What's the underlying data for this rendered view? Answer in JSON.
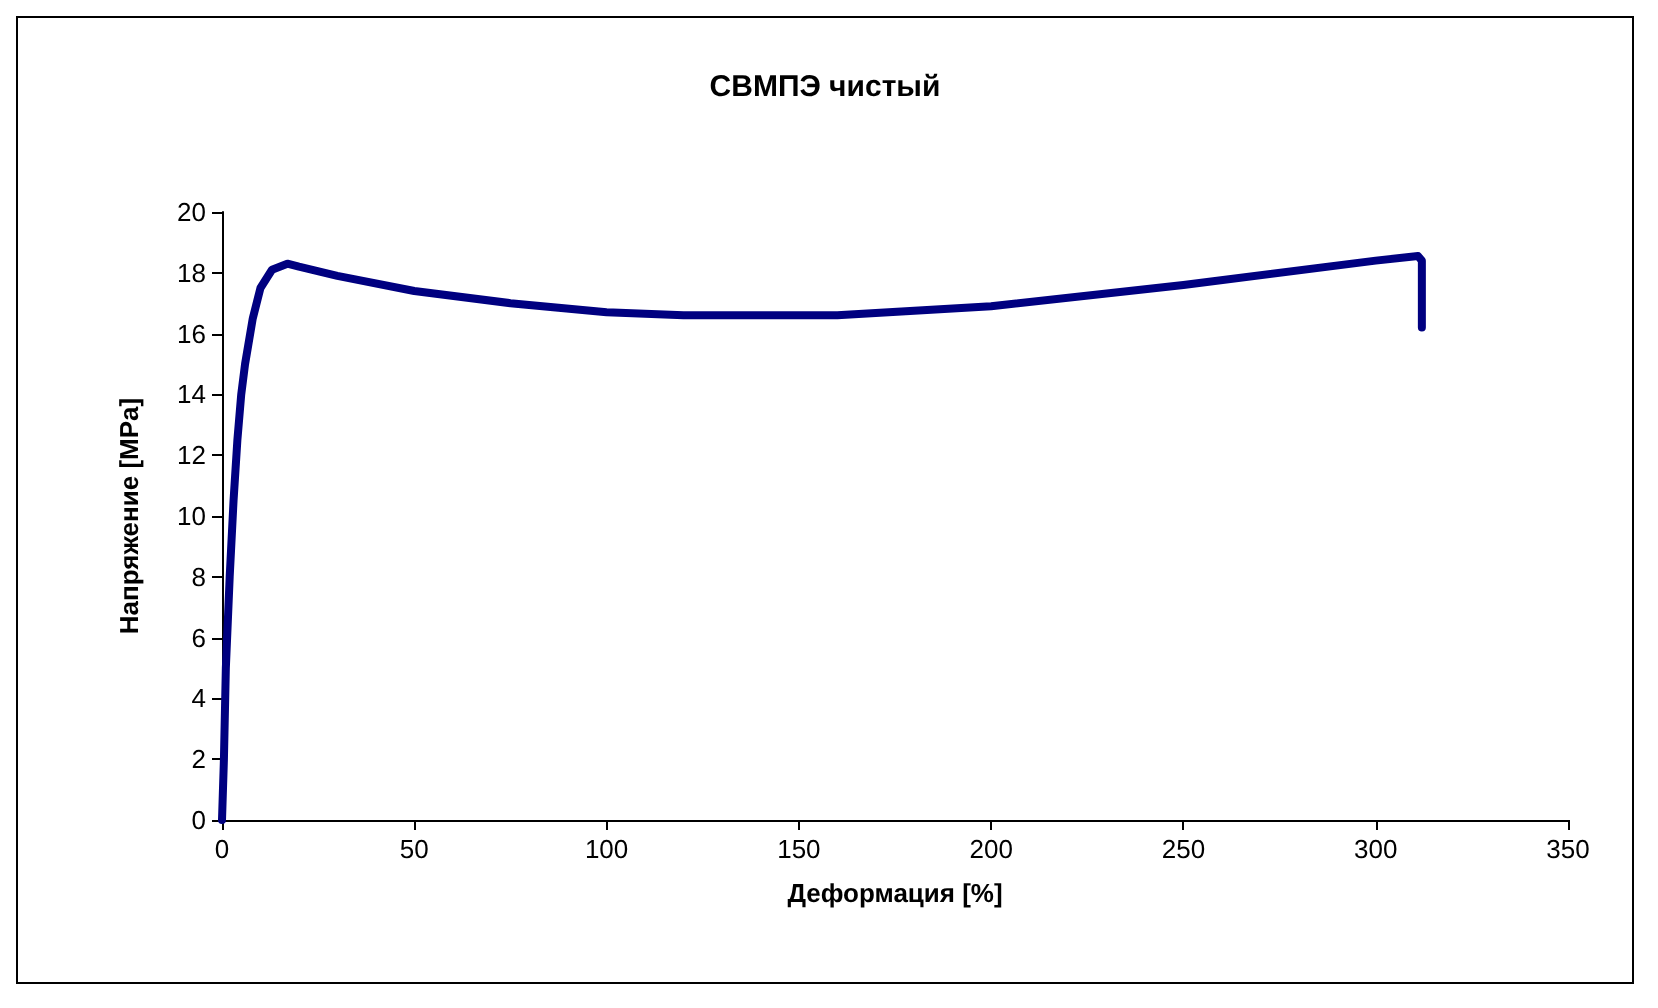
{
  "chart_data": {
    "type": "line",
    "title": "СВМПЭ чистый",
    "xlabel": "Деформация [%]",
    "ylabel": "Напряжение [MPa]",
    "x": [
      0,
      0.5,
      1,
      2,
      3,
      4,
      5,
      6,
      8,
      10,
      13,
      17,
      20,
      30,
      50,
      75,
      100,
      120,
      160,
      200,
      250,
      300,
      311,
      312,
      312,
      312
    ],
    "series": [
      {
        "color": "#000080",
        "values": [
          0,
          2,
          5,
          8,
          10.5,
          12.5,
          14,
          15,
          16.5,
          17.5,
          18.1,
          18.3,
          18.2,
          17.9,
          17.4,
          17.0,
          16.7,
          16.6,
          16.6,
          16.9,
          17.6,
          18.4,
          18.55,
          18.4,
          17.5,
          16.2
        ]
      }
    ],
    "xlim": [
      0,
      350
    ],
    "xticks": [
      0,
      50,
      100,
      150,
      200,
      250,
      300,
      350
    ],
    "ylim": [
      0,
      20
    ],
    "yticks": [
      0,
      2,
      4,
      6,
      8,
      10,
      12,
      14,
      16,
      18,
      20
    ],
    "grid": false,
    "marker": "none",
    "line_style": "solid"
  }
}
